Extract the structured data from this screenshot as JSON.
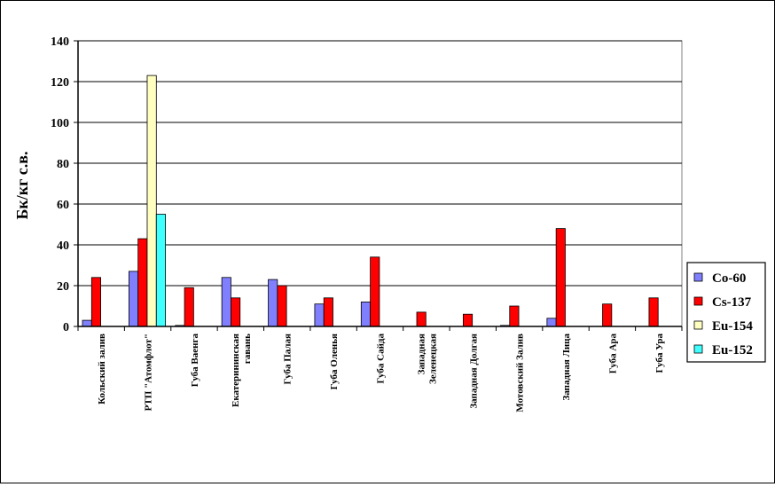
{
  "chart_data": {
    "type": "bar",
    "ylabel": "Бк/кг с.в.",
    "xlabel": "",
    "ylim": [
      0,
      140
    ],
    "yticks": [
      0,
      20,
      40,
      60,
      80,
      100,
      120,
      140
    ],
    "grid": true,
    "legend_position": "right",
    "categories": [
      [
        "Кольский залив"
      ],
      [
        "РТП \"Атомфлот\""
      ],
      [
        "Губа Ваенга"
      ],
      [
        "Екатерининская",
        "гавань"
      ],
      [
        "Губа Палая"
      ],
      [
        "Губа Оленья"
      ],
      [
        "Губа Сайда"
      ],
      [
        "Западная",
        "Зеленецкая"
      ],
      [
        "Западная Долгая"
      ],
      [
        "Мотовский Залив"
      ],
      [
        "Западная Лица"
      ],
      [
        "Губа Ара"
      ],
      [
        "Губа Ура"
      ]
    ],
    "series": [
      {
        "name": "Co-60",
        "color": "#8080ff",
        "values": [
          3,
          27,
          0.5,
          24,
          23,
          11,
          12,
          0,
          0,
          0.5,
          4,
          0,
          0
        ]
      },
      {
        "name": "Cs-137",
        "color": "#ff0000",
        "values": [
          24,
          43,
          19,
          14,
          20,
          14,
          34,
          7,
          6,
          10,
          48,
          11,
          14
        ]
      },
      {
        "name": "Eu-154",
        "color": "#ffffc0",
        "values": [
          0,
          123,
          0,
          0,
          0,
          0,
          0,
          0,
          0,
          0,
          0,
          0,
          0
        ]
      },
      {
        "name": "Eu-152",
        "color": "#40ffff",
        "values": [
          0,
          55,
          0,
          0,
          0,
          0,
          0,
          0,
          0,
          0,
          0,
          0,
          0
        ]
      }
    ]
  }
}
